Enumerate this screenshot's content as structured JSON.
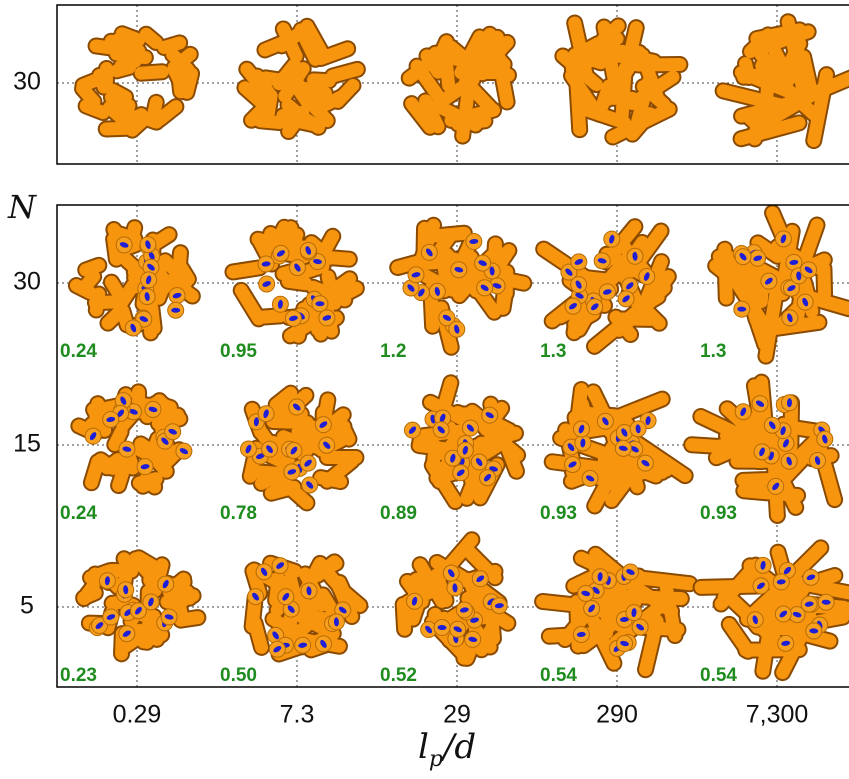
{
  "x_axis": {
    "label": "l",
    "label_sub": "p",
    "label_rest": "/d",
    "ticks": [
      "0.29",
      "7.3",
      "29",
      "290",
      "7,300"
    ]
  },
  "top_panel": {
    "y_ticks": [
      "30"
    ]
  },
  "bottom_panel": {
    "y_label": "N",
    "y_ticks": [
      "30",
      "15",
      "5"
    ],
    "rows": [
      [
        "0.24",
        "0.95",
        "1.2",
        "1.3",
        "1.3"
      ],
      [
        "0.24",
        "0.78",
        "0.89",
        "0.93",
        "0.93"
      ],
      [
        "0.23",
        "0.50",
        "0.52",
        "0.54",
        "0.54"
      ]
    ]
  }
}
